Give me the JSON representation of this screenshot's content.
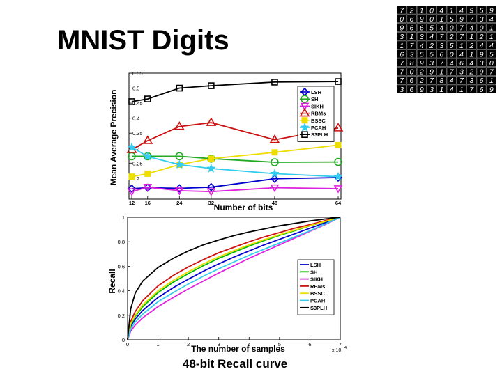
{
  "slide": {
    "title": "MNIST Digits",
    "caption": "48-bit Recall curve"
  },
  "thumbnail": {
    "digit_rows": [
      "7210414959",
      "0690159734",
      "9665407401",
      "3134727121",
      "1742351244",
      "6355604195",
      "7893746430",
      "7029173297",
      "7627847361",
      "3693141769"
    ],
    "cell_color": "#000000",
    "digit_color": "#ffffff",
    "gap_color": "#9a9a9a"
  },
  "chart_data": [
    {
      "type": "line",
      "title": "",
      "xlabel": "Number of bits",
      "ylabel": "Mean Average Precision",
      "x": [
        12,
        16,
        24,
        32,
        48,
        64
      ],
      "x_tick_labels": [
        "12",
        "16",
        "24",
        "32",
        "48",
        "64"
      ],
      "xlim": [
        12,
        64
      ],
      "ylim": [
        0.13,
        0.55
      ],
      "y_ticks": [
        0.2,
        0.25,
        0.3,
        0.35,
        0.4,
        0.45,
        0.5,
        0.55
      ],
      "y_tick_labels": [
        "0.2",
        "0.25",
        "0.3",
        "0.35",
        "0.4",
        "0.45",
        "0.5",
        "0.55"
      ],
      "grid": false,
      "legend_position": "top-right",
      "series": [
        {
          "name": "LSH",
          "color": "#0000cc",
          "marker": "diamond",
          "values": [
            0.165,
            0.168,
            0.166,
            0.17,
            0.198,
            0.202
          ]
        },
        {
          "name": "SH",
          "color": "#22aa22",
          "marker": "circle",
          "values": [
            0.273,
            0.273,
            0.273,
            0.265,
            0.253,
            0.254
          ]
        },
        {
          "name": "SIKH",
          "color": "#dd22dd",
          "marker": "triangle-down",
          "values": [
            0.155,
            0.17,
            0.158,
            0.155,
            0.168,
            0.165
          ]
        },
        {
          "name": "RBMs",
          "color": "#cc1111",
          "marker": "triangle-up",
          "values": [
            0.295,
            0.325,
            0.372,
            0.385,
            0.328,
            0.367
          ]
        },
        {
          "name": "BSSC",
          "color": "#eedd00",
          "marker": "square-filled",
          "values": [
            0.205,
            0.215,
            0.245,
            0.265,
            0.286,
            0.31
          ]
        },
        {
          "name": "PCAH",
          "color": "#33ccee",
          "marker": "star",
          "values": [
            0.303,
            0.272,
            0.245,
            0.232,
            0.215,
            0.205
          ]
        },
        {
          "name": "S3PLH",
          "color": "#000000",
          "marker": "square",
          "values": [
            0.455,
            0.464,
            0.5,
            0.508,
            0.52,
            0.522
          ]
        }
      ]
    },
    {
      "type": "line",
      "title": "",
      "xlabel": "The number of samples",
      "ylabel": "Recall",
      "x_exponent_label": "x 10",
      "x_exponent_power": "4",
      "x_ticks": [
        0,
        1,
        2,
        3,
        4,
        5,
        6,
        7
      ],
      "x_tick_labels": [
        "0",
        "1",
        "2",
        "3",
        "4",
        "5",
        "6",
        "7"
      ],
      "y_ticks": [
        0,
        0.2,
        0.4,
        0.6,
        0.8,
        1
      ],
      "y_tick_labels": [
        "0",
        "0.2",
        "0.4",
        "0.6",
        "0.8",
        "1"
      ],
      "xlim": [
        0,
        7
      ],
      "ylim": [
        0,
        1
      ],
      "grid": false,
      "legend_position": "right",
      "curve_x": [
        0,
        0.1,
        0.25,
        0.5,
        1,
        1.5,
        2,
        2.5,
        3,
        3.5,
        4,
        4.5,
        5,
        5.5,
        6,
        6.5,
        7
      ],
      "series": [
        {
          "name": "LSH",
          "color": "#0000cc",
          "values": [
            0,
            0.11,
            0.17,
            0.24,
            0.345,
            0.425,
            0.495,
            0.56,
            0.62,
            0.675,
            0.725,
            0.775,
            0.82,
            0.865,
            0.91,
            0.955,
            1.0
          ]
        },
        {
          "name": "SH",
          "color": "#00bb00",
          "values": [
            0,
            0.12,
            0.19,
            0.27,
            0.385,
            0.47,
            0.54,
            0.605,
            0.665,
            0.715,
            0.765,
            0.81,
            0.852,
            0.89,
            0.93,
            0.965,
            1.0
          ]
        },
        {
          "name": "SIKH",
          "color": "#dd22dd",
          "values": [
            0,
            0.07,
            0.12,
            0.18,
            0.27,
            0.345,
            0.415,
            0.48,
            0.545,
            0.605,
            0.665,
            0.72,
            0.775,
            0.83,
            0.885,
            0.94,
            1.0
          ]
        },
        {
          "name": "RBMs",
          "color": "#cc1111",
          "values": [
            0,
            0.15,
            0.23,
            0.32,
            0.44,
            0.525,
            0.595,
            0.655,
            0.71,
            0.755,
            0.8,
            0.84,
            0.875,
            0.91,
            0.94,
            0.972,
            1.0
          ]
        },
        {
          "name": "BSSC",
          "color": "#eedd00",
          "values": [
            0,
            0.13,
            0.2,
            0.285,
            0.4,
            0.485,
            0.555,
            0.62,
            0.677,
            0.727,
            0.775,
            0.818,
            0.858,
            0.895,
            0.932,
            0.966,
            1.0
          ]
        },
        {
          "name": "PCAH",
          "color": "#33ccee",
          "values": [
            0,
            0.09,
            0.145,
            0.21,
            0.31,
            0.385,
            0.455,
            0.52,
            0.58,
            0.635,
            0.69,
            0.74,
            0.79,
            0.84,
            0.89,
            0.945,
            1.0
          ]
        },
        {
          "name": "S3PLH",
          "color": "#000000",
          "values": [
            0,
            0.25,
            0.38,
            0.48,
            0.59,
            0.665,
            0.725,
            0.775,
            0.815,
            0.85,
            0.88,
            0.905,
            0.93,
            0.95,
            0.97,
            0.986,
            1.0
          ]
        }
      ]
    }
  ]
}
